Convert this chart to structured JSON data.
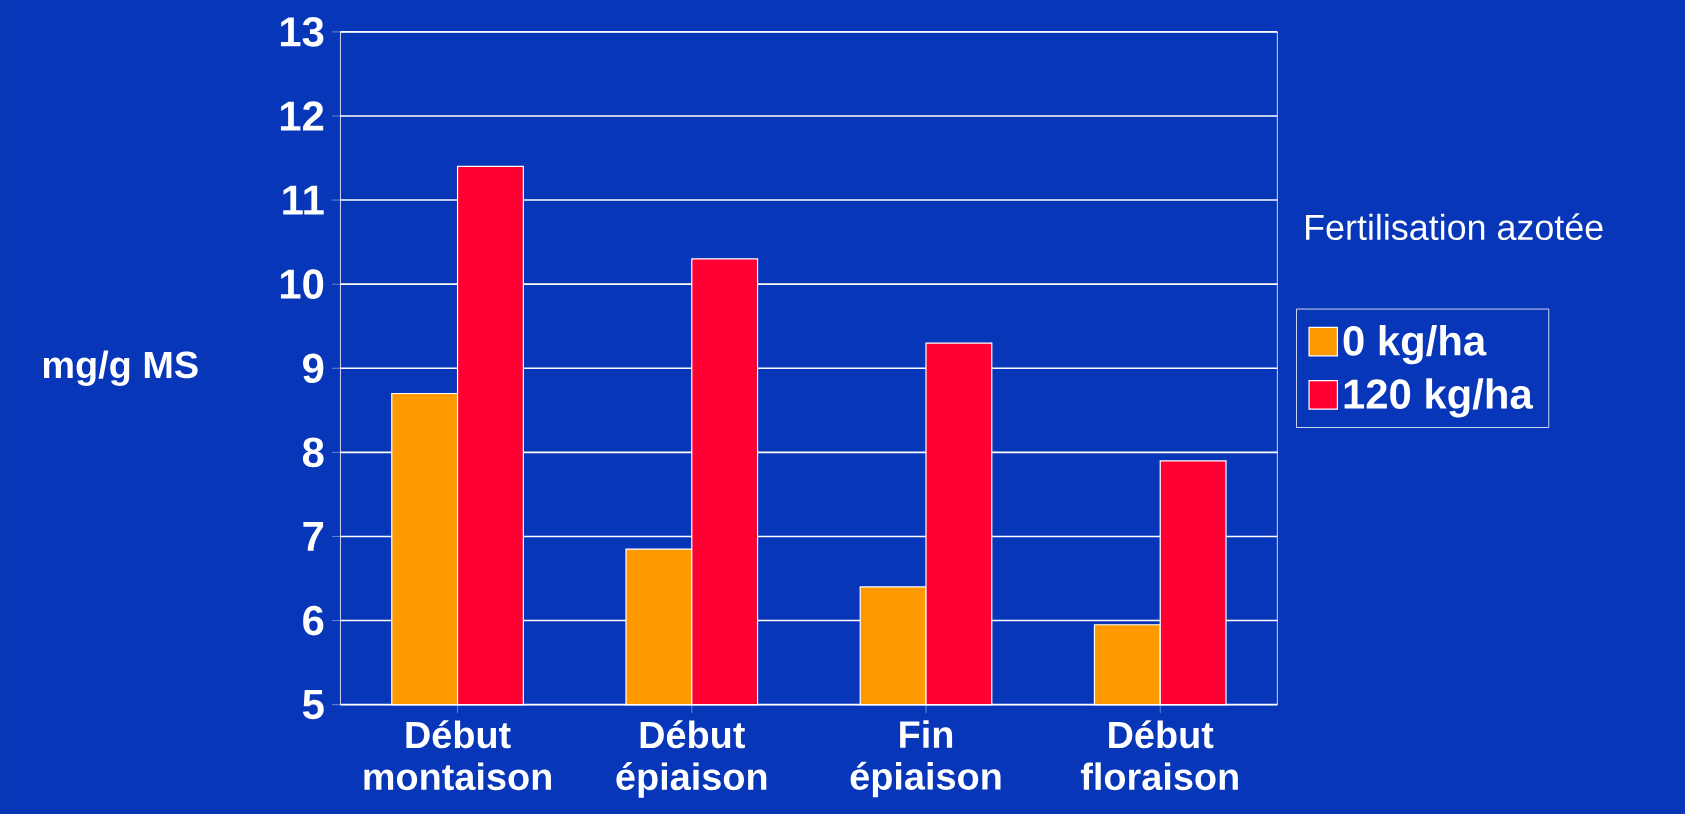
{
  "chart_data": {
    "type": "bar",
    "ylabel": "mg/g MS",
    "legend_title": "Fertilisation azotée",
    "categories": [
      "Début montaison",
      "Début épiaison",
      "Fin épiaison",
      "Début floraison"
    ],
    "series": [
      {
        "name": "0 kg/ha",
        "color": "#ff9900",
        "values": [
          8.7,
          6.85,
          6.4,
          5.95
        ]
      },
      {
        "name": "120 kg/ha",
        "color": "#ff0033",
        "values": [
          11.4,
          10.3,
          9.3,
          7.9
        ]
      }
    ],
    "ylim": [
      5,
      13
    ],
    "yticks": [
      5,
      6,
      7,
      8,
      9,
      10,
      11,
      12,
      13
    ],
    "grid": "y",
    "legend": "right"
  }
}
